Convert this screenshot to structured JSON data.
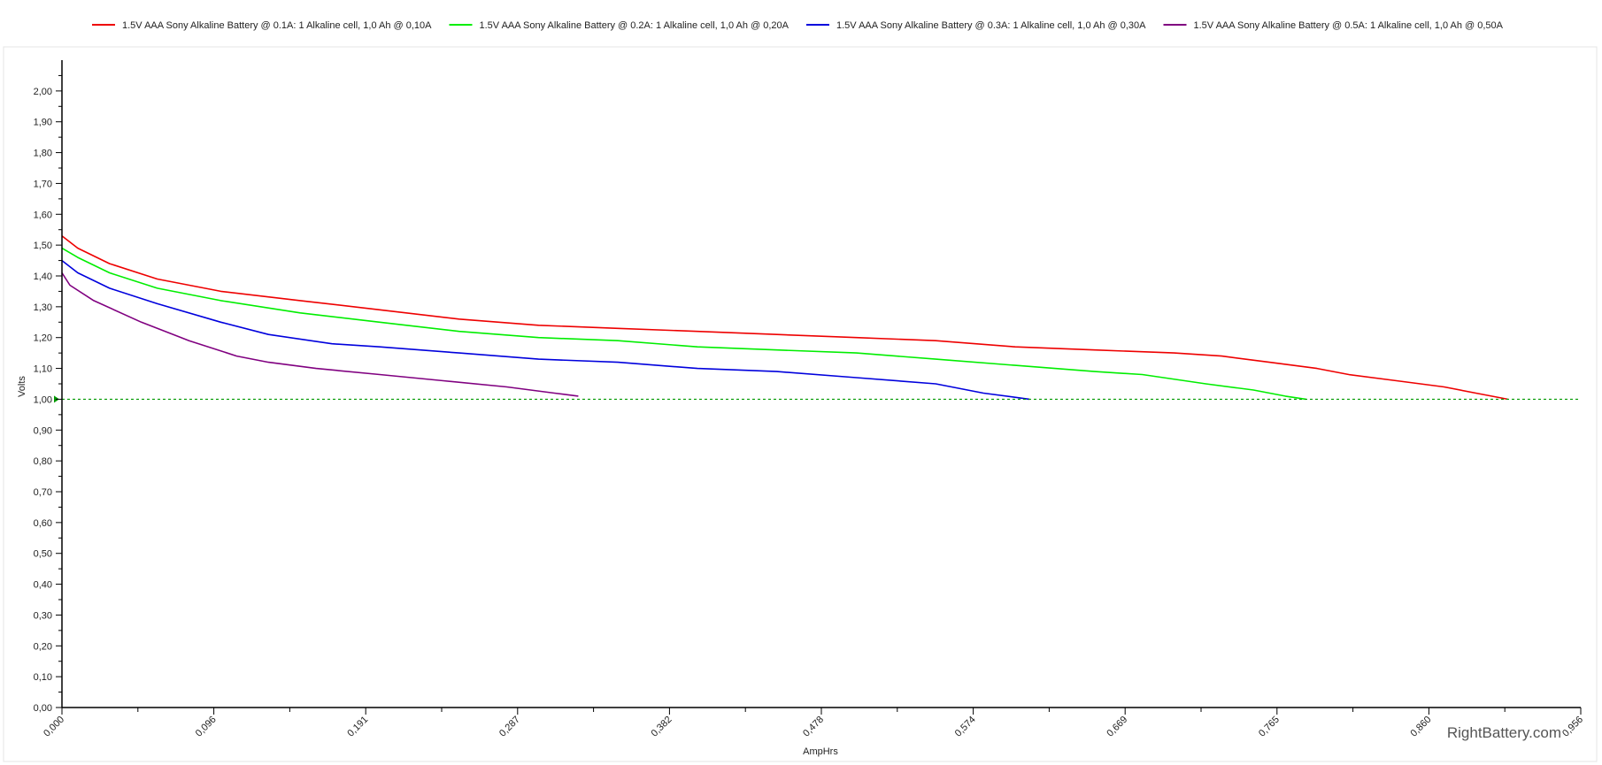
{
  "chart_data": {
    "type": "line",
    "title": "",
    "xlabel": "AmpHrs",
    "ylabel": "Volts",
    "xlim": [
      0,
      0.956
    ],
    "ylim": [
      0,
      2.1
    ],
    "x_ticks": [
      "0,000",
      "0,096",
      "0,191",
      "0,287",
      "0,382",
      "0,478",
      "0,574",
      "0,669",
      "0,765",
      "0,860",
      "0,956"
    ],
    "y_ticks": [
      "0,00",
      "0,10",
      "0,20",
      "0,30",
      "0,40",
      "0,50",
      "0,60",
      "0,70",
      "0,80",
      "0,90",
      "1,00",
      "1,10",
      "1,20",
      "1,30",
      "1,40",
      "1,50",
      "1,60",
      "1,70",
      "1,80",
      "1,90",
      "2,00"
    ],
    "grid": false,
    "legend_position": "top",
    "cutoff_voltage": 1.0,
    "cutoff_color": "#009900",
    "series": [
      {
        "name": "1.5V AAA Sony Alkaline Battery @ 0.1A: 1 Alkaline cell, 1,0 Ah @ 0,10A",
        "color": "#ee0000",
        "points": [
          [
            0.0,
            1.53
          ],
          [
            0.01,
            1.49
          ],
          [
            0.03,
            1.44
          ],
          [
            0.06,
            1.39
          ],
          [
            0.1,
            1.35
          ],
          [
            0.15,
            1.32
          ],
          [
            0.2,
            1.29
          ],
          [
            0.25,
            1.26
          ],
          [
            0.3,
            1.24
          ],
          [
            0.35,
            1.23
          ],
          [
            0.4,
            1.22
          ],
          [
            0.45,
            1.21
          ],
          [
            0.5,
            1.2
          ],
          [
            0.55,
            1.19
          ],
          [
            0.6,
            1.17
          ],
          [
            0.65,
            1.16
          ],
          [
            0.7,
            1.15
          ],
          [
            0.73,
            1.14
          ],
          [
            0.76,
            1.12
          ],
          [
            0.79,
            1.1
          ],
          [
            0.81,
            1.08
          ],
          [
            0.84,
            1.06
          ],
          [
            0.87,
            1.04
          ],
          [
            0.89,
            1.02
          ],
          [
            0.91,
            1.0
          ]
        ]
      },
      {
        "name": "1.5V AAA Sony Alkaline Battery @ 0.2A: 1 Alkaline cell, 1,0 Ah @ 0,20A",
        "color": "#00ee00",
        "points": [
          [
            0.0,
            1.49
          ],
          [
            0.01,
            1.46
          ],
          [
            0.03,
            1.41
          ],
          [
            0.06,
            1.36
          ],
          [
            0.1,
            1.32
          ],
          [
            0.15,
            1.28
          ],
          [
            0.2,
            1.25
          ],
          [
            0.25,
            1.22
          ],
          [
            0.3,
            1.2
          ],
          [
            0.35,
            1.19
          ],
          [
            0.4,
            1.17
          ],
          [
            0.45,
            1.16
          ],
          [
            0.5,
            1.15
          ],
          [
            0.55,
            1.13
          ],
          [
            0.6,
            1.11
          ],
          [
            0.65,
            1.09
          ],
          [
            0.68,
            1.08
          ],
          [
            0.72,
            1.05
          ],
          [
            0.75,
            1.03
          ],
          [
            0.77,
            1.01
          ],
          [
            0.783,
            1.0
          ]
        ]
      },
      {
        "name": "1.5V AAA Sony Alkaline Battery @ 0.3A: 1 Alkaline cell, 1,0 Ah @ 0,30A",
        "color": "#0000dd",
        "points": [
          [
            0.0,
            1.45
          ],
          [
            0.01,
            1.41
          ],
          [
            0.03,
            1.36
          ],
          [
            0.06,
            1.31
          ],
          [
            0.1,
            1.25
          ],
          [
            0.13,
            1.21
          ],
          [
            0.17,
            1.18
          ],
          [
            0.2,
            1.17
          ],
          [
            0.25,
            1.15
          ],
          [
            0.3,
            1.13
          ],
          [
            0.35,
            1.12
          ],
          [
            0.4,
            1.1
          ],
          [
            0.45,
            1.09
          ],
          [
            0.5,
            1.07
          ],
          [
            0.55,
            1.05
          ],
          [
            0.58,
            1.02
          ],
          [
            0.609,
            1.0
          ]
        ]
      },
      {
        "name": "1.5V AAA Sony Alkaline Battery @ 0.5A: 1 Alkaline cell, 1,0 Ah @ 0,50A",
        "color": "#800080",
        "points": [
          [
            0.0,
            1.41
          ],
          [
            0.005,
            1.37
          ],
          [
            0.02,
            1.32
          ],
          [
            0.05,
            1.25
          ],
          [
            0.08,
            1.19
          ],
          [
            0.11,
            1.14
          ],
          [
            0.13,
            1.12
          ],
          [
            0.16,
            1.1
          ],
          [
            0.2,
            1.08
          ],
          [
            0.24,
            1.06
          ],
          [
            0.28,
            1.04
          ],
          [
            0.31,
            1.02
          ],
          [
            0.325,
            1.01
          ]
        ]
      }
    ]
  },
  "watermark": "RightBattery.com"
}
